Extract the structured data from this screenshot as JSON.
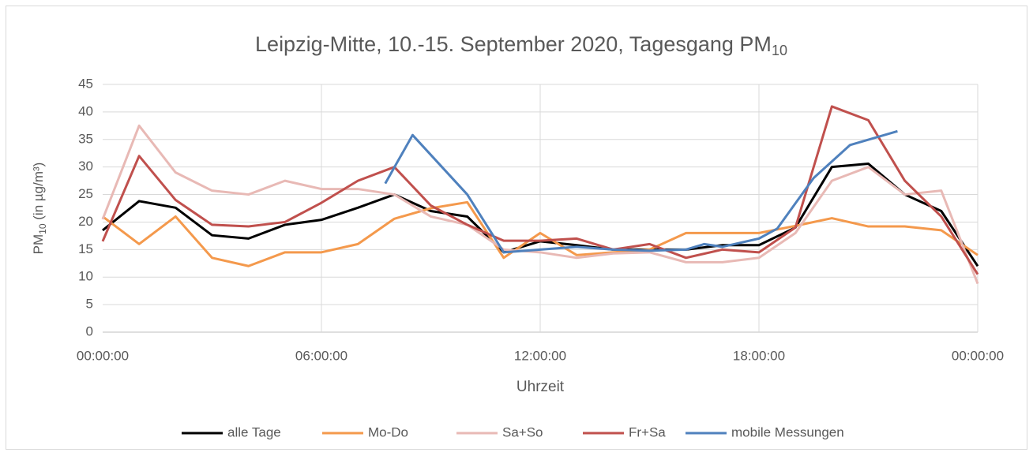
{
  "chart_data": {
    "type": "line",
    "title": "Leipzig-Mitte, 10.-15. September 2020, Tagesgang PM",
    "title_subscript": "10",
    "ylabel": [
      "PM",
      "10",
      " (in µg/m³)"
    ],
    "xlabel": "Uhrzeit",
    "x": [
      0,
      1,
      2,
      3,
      4,
      5,
      6,
      7,
      8,
      9,
      10,
      11,
      12,
      13,
      14,
      15,
      16,
      17,
      18,
      19,
      20,
      21,
      22,
      23,
      24
    ],
    "xlim": [
      0,
      24
    ],
    "xticks": [
      {
        "value": 0,
        "label": "00:00:00"
      },
      {
        "value": 6,
        "label": "06:00:00"
      },
      {
        "value": 12,
        "label": "12:00:00"
      },
      {
        "value": 18,
        "label": "18:00:00"
      },
      {
        "value": 24,
        "label": "00:00:00"
      }
    ],
    "ylim": [
      0,
      45
    ],
    "yticks": [
      0,
      5,
      10,
      15,
      20,
      25,
      30,
      35,
      40,
      45
    ],
    "grid": true,
    "legend": "bottom",
    "series": [
      {
        "name": "alle Tage",
        "color": "#000000",
        "values": [
          18.5,
          23.8,
          22.6,
          17.6,
          17,
          19.5,
          20.4,
          22.6,
          25,
          22,
          21,
          14.5,
          16.5,
          15.8,
          15,
          15,
          15,
          15.8,
          15.8,
          19,
          30,
          30.6,
          25,
          22,
          12
        ]
      },
      {
        "name": "Mo-Do",
        "color": "#f4994c",
        "values": [
          21,
          16,
          21,
          13.5,
          12,
          14.5,
          14.5,
          16,
          20.6,
          22.5,
          23.6,
          13.5,
          18,
          14,
          14.5,
          15,
          18,
          18,
          18,
          19.3,
          20.7,
          19.2,
          19.2,
          18.5,
          14
        ]
      },
      {
        "name": "Sa+So",
        "color": "#e8b9b5",
        "values": [
          20.5,
          37.5,
          29,
          25.7,
          25,
          27.5,
          26,
          26,
          25,
          21,
          19.5,
          15,
          14.5,
          13.5,
          14.3,
          14.5,
          12.7,
          12.7,
          13.5,
          18,
          27.5,
          30,
          25,
          25.7,
          8.8
        ]
      },
      {
        "name": "Fr+Sa",
        "color": "#c0504d",
        "values": [
          16.5,
          32,
          24,
          19.5,
          19.2,
          20,
          23.5,
          27.5,
          30,
          23,
          19.5,
          16.6,
          16.6,
          17,
          15,
          16,
          13.5,
          15,
          14.5,
          19,
          41,
          38.5,
          27.5,
          21,
          10.5
        ]
      },
      {
        "name": "mobile Messungen",
        "color": "#4f81bd",
        "x": [
          7.75,
          8.5,
          10,
          11,
          12,
          13,
          14,
          15,
          16,
          16.5,
          17,
          18,
          18.5,
          19.5,
          20.5,
          21.8
        ],
        "values": [
          27,
          35.8,
          25,
          14.5,
          15,
          15.5,
          15,
          14.8,
          15,
          16,
          15.5,
          17,
          18.8,
          28,
          34,
          36.5
        ]
      }
    ]
  }
}
